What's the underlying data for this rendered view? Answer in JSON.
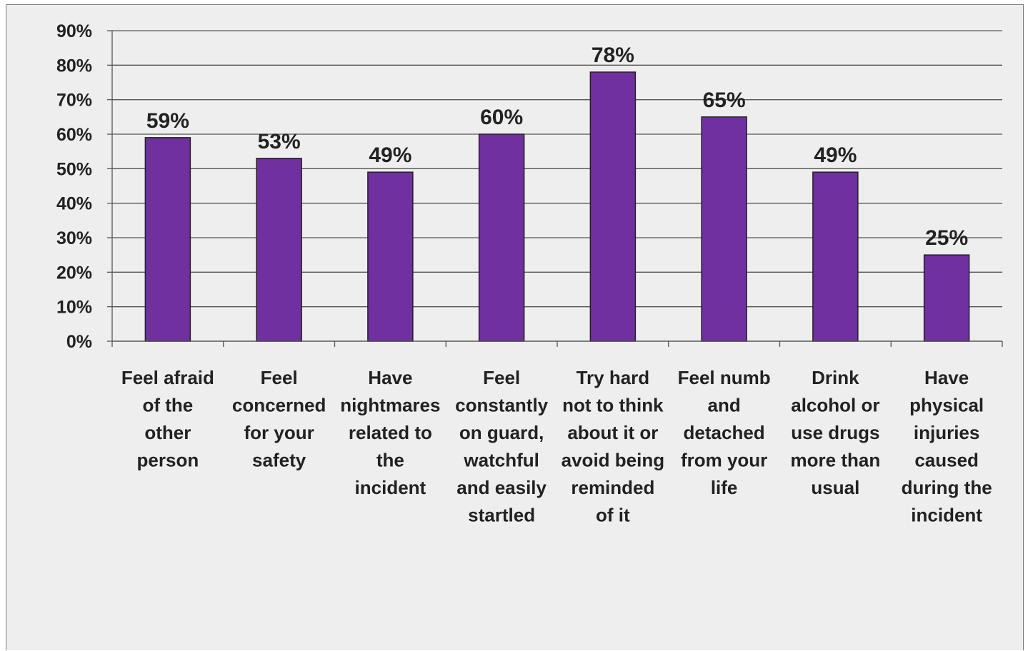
{
  "chart_data": {
    "type": "bar",
    "title": "",
    "xlabel": "",
    "ylabel": "",
    "categories": [
      [
        "Feel afraid",
        "of the",
        "other",
        "person"
      ],
      [
        "Feel",
        "concerned",
        "for your",
        "safety"
      ],
      [
        "Have",
        "nightmares",
        "related to",
        "the",
        "incident"
      ],
      [
        "Feel",
        "constantly",
        "on guard,",
        "watchful",
        "and easily",
        "startled"
      ],
      [
        "Try hard",
        "not to think",
        "about it or",
        "avoid being",
        "reminded",
        "of it"
      ],
      [
        "Feel numb",
        "and",
        "detached",
        "from your",
        "life"
      ],
      [
        "Drink",
        "alcohol or",
        "use drugs",
        "more than",
        "usual"
      ],
      [
        "Have",
        "physical",
        "injuries",
        "caused",
        "during the",
        "incident"
      ]
    ],
    "values": [
      59,
      53,
      49,
      60,
      78,
      65,
      49,
      25
    ],
    "data_labels": [
      "59%",
      "53%",
      "49%",
      "60%",
      "78%",
      "65%",
      "49%",
      "25%"
    ],
    "ylim": [
      0,
      90
    ],
    "y_ticks": [
      0,
      10,
      20,
      30,
      40,
      50,
      60,
      70,
      80,
      90
    ],
    "y_tick_labels": [
      "0%",
      "10%",
      "20%",
      "30%",
      "40%",
      "50%",
      "60%",
      "70%",
      "80%",
      "90%"
    ],
    "grid": true,
    "legend": "none",
    "bar_color": "#7030a0",
    "bar_edge_color": "#222222",
    "grid_color": "#555555",
    "background_color": "#eeeeee"
  }
}
